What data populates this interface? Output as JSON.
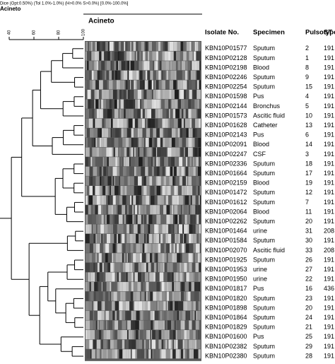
{
  "header": {
    "settings": "Dice (Opt:0.50%) (Tol 1.0%-1.0%) (H>0.0% S>0.0%) [0.0%-100.0%]",
    "left_label": "Acineto",
    "gel_label": "Acineto"
  },
  "scale": {
    "ticks": [
      "40",
      "60",
      "80",
      "100"
    ]
  },
  "table": {
    "columns": [
      "Isolate No.",
      "Specimen",
      "Pulsotype",
      "ST"
    ],
    "rows": [
      [
        "KBN10P01577",
        "Sputum",
        "2",
        "191"
      ],
      [
        "KBN10P02128",
        "Sputum",
        "1",
        "191"
      ],
      [
        "KBN10P02198",
        "Blood",
        "8",
        "191"
      ],
      [
        "KBN10P02246",
        "Sputum",
        "9",
        "191"
      ],
      [
        "KBN10P02254",
        "Sputum",
        "15",
        "191"
      ],
      [
        "KBN10P01598",
        "Pus",
        "4",
        "191"
      ],
      [
        "KBN10P02144",
        "Bronchus",
        "5",
        "191"
      ],
      [
        "KBN10P01573",
        "Ascitic fluid",
        "10",
        "191"
      ],
      [
        "KBN10P01628",
        "Catheter",
        "13",
        "191"
      ],
      [
        "KBN10P02143",
        "Pus",
        "6",
        "191"
      ],
      [
        "KBN10P02091",
        "Blood",
        "14",
        "191"
      ],
      [
        "KBN10P02247",
        "CSF",
        "3",
        "191"
      ],
      [
        "KBN10P02336",
        "Sputum",
        "18",
        "191"
      ],
      [
        "KBN10P01664",
        "Sputum",
        "17",
        "191"
      ],
      [
        "KBN10P02159",
        "Blood",
        "19",
        "191"
      ],
      [
        "KBN10P01472",
        "Sputum",
        "12",
        "191"
      ],
      [
        "KBN10P01612",
        "Sputum",
        "7",
        "191"
      ],
      [
        "KBN10P02064",
        "Blood",
        "11",
        "191"
      ],
      [
        "KBN10P02262",
        "Sputum",
        "20",
        "191"
      ],
      [
        "KBN10P01464",
        "urine",
        "31",
        "208"
      ],
      [
        "KBN10P01584",
        "Sputum",
        "30",
        "191"
      ],
      [
        "KBN10P02070",
        "Ascitic fluid",
        "33",
        "208"
      ],
      [
        "KBN10P01925",
        "Sputum",
        "26",
        "191"
      ],
      [
        "KBN10P01953",
        "urine",
        "27",
        "191"
      ],
      [
        "KBN10P01950",
        "urine",
        "22",
        "191"
      ],
      [
        "KBN10P01817",
        "Pus",
        "16",
        "436"
      ],
      [
        "KBN10P01820",
        "Sputum",
        "23",
        "191"
      ],
      [
        "KBN10P01898",
        "Sputum",
        "20",
        "191"
      ],
      [
        "KBN10P01864",
        "Sputum",
        "24",
        "191"
      ],
      [
        "KBN10P01829",
        "Sputum",
        "21",
        "191"
      ],
      [
        "KBN10P01600",
        "Pus",
        "25",
        "191"
      ],
      [
        "KBN10P02382",
        "Sputum",
        "29",
        "191"
      ],
      [
        "KBN10P02380",
        "Sputum",
        "28",
        "191"
      ]
    ]
  }
}
